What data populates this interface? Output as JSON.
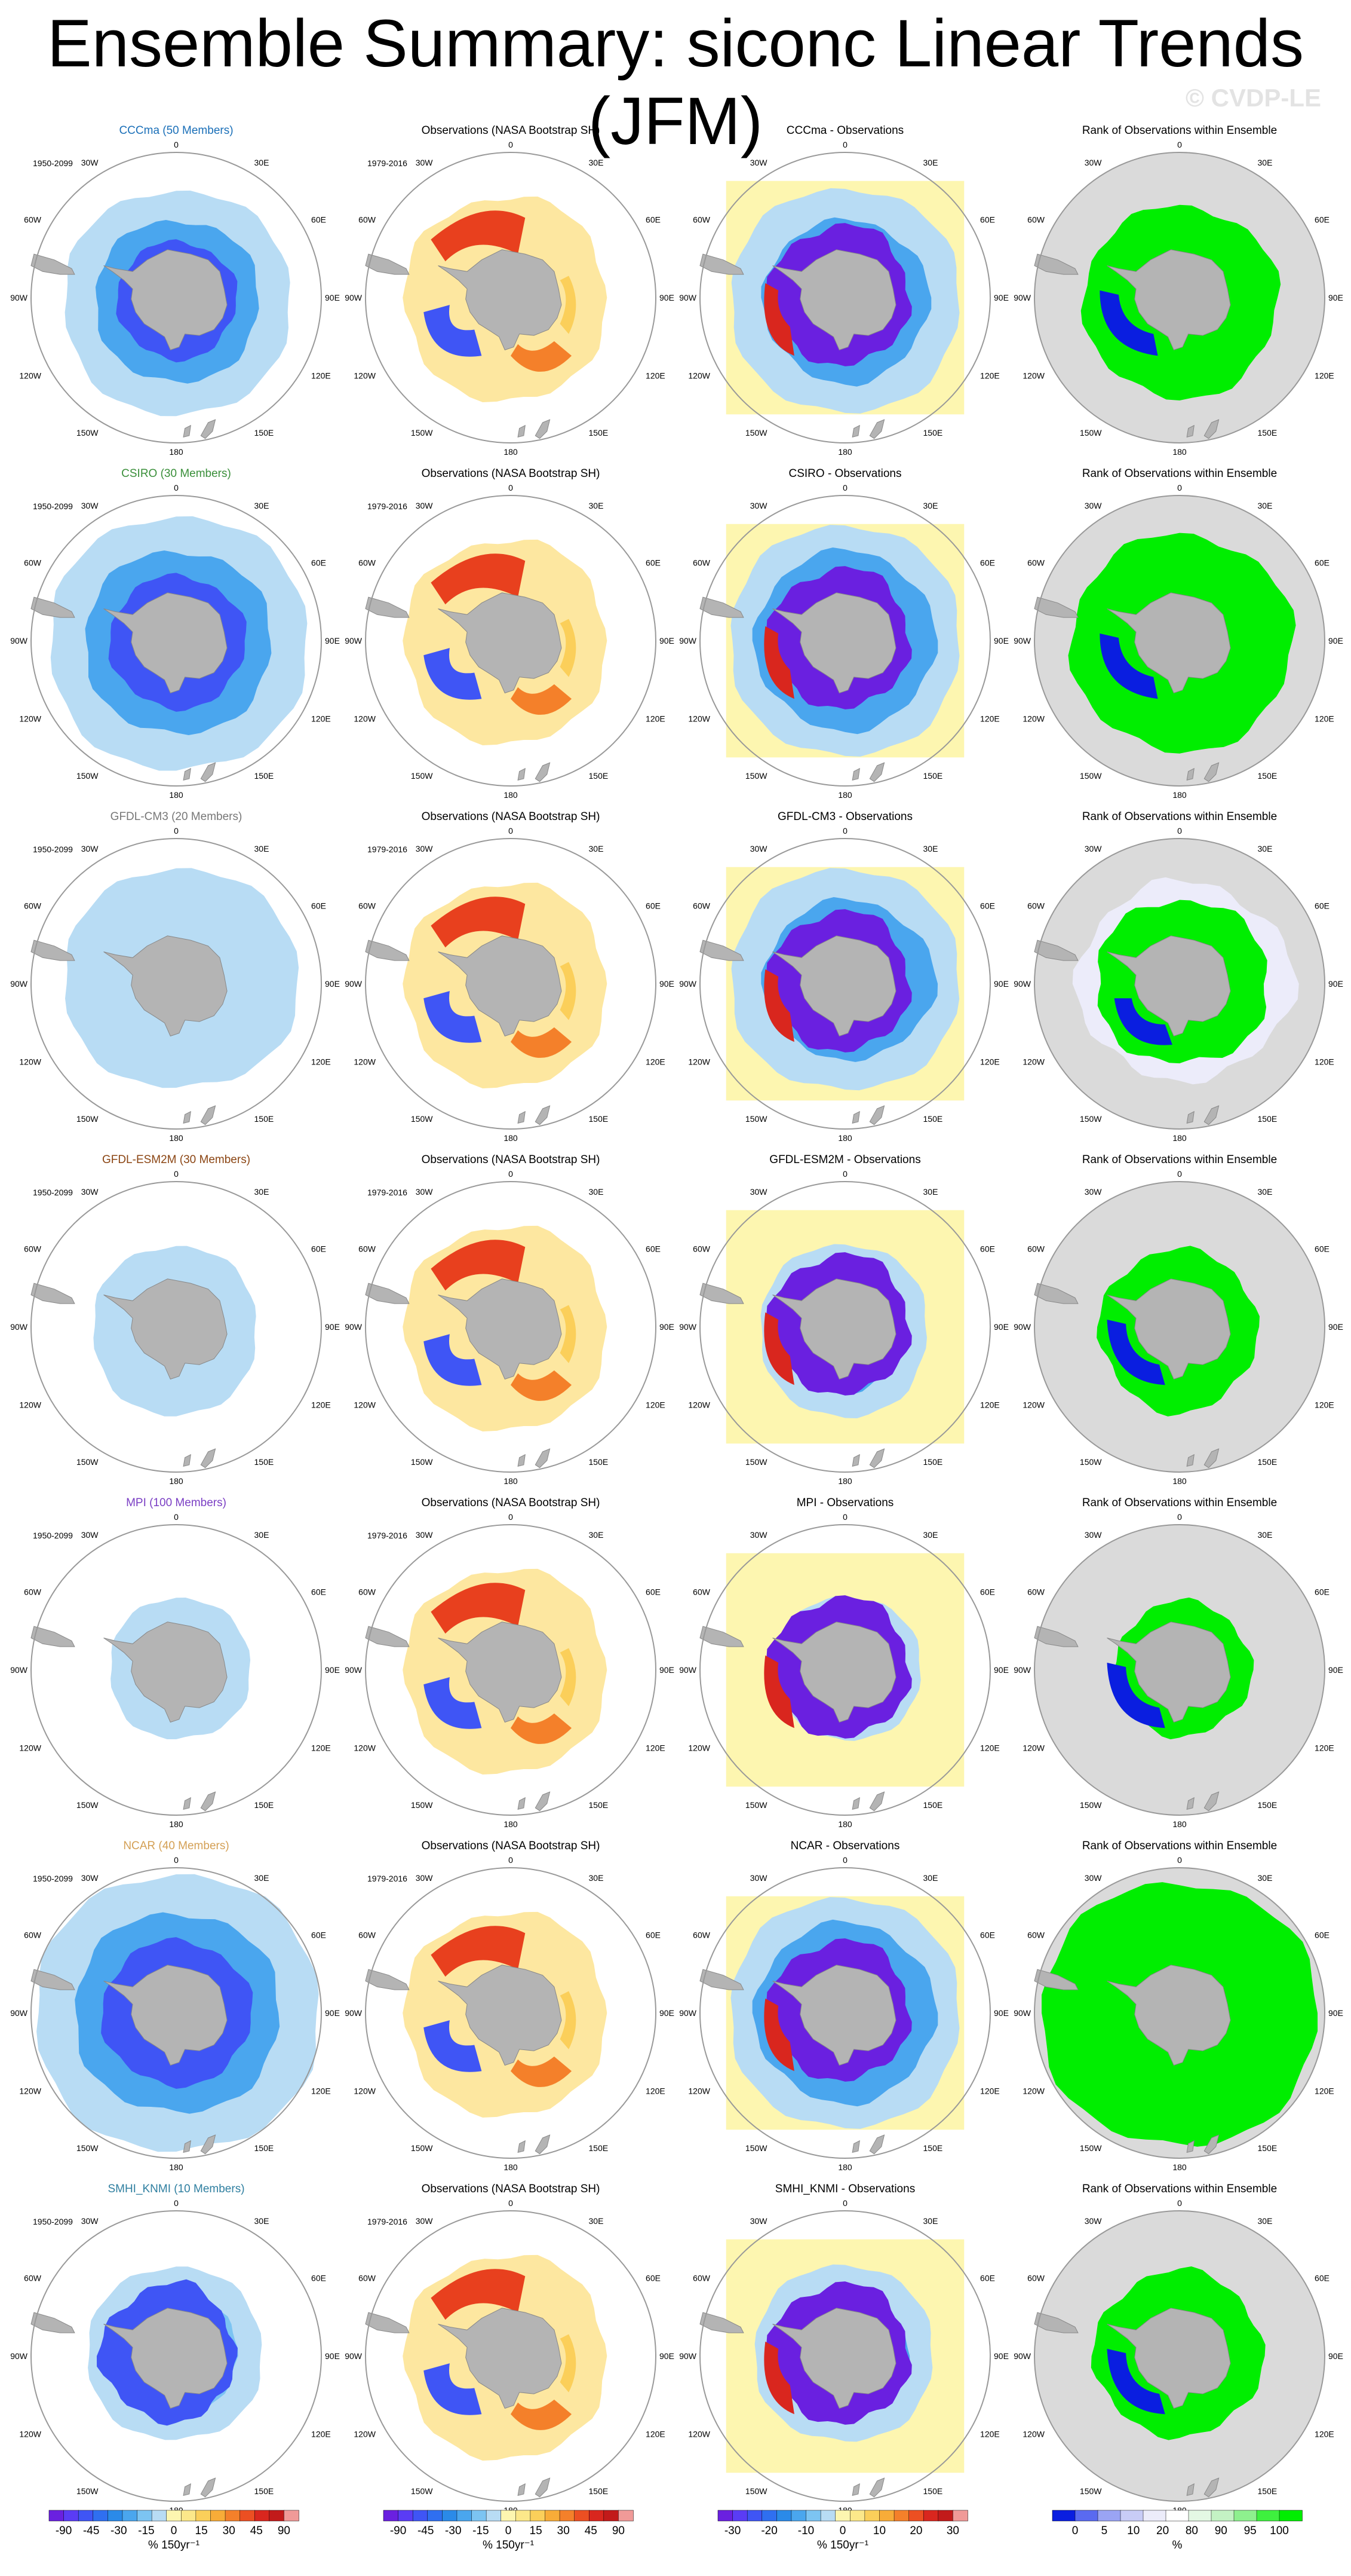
{
  "title": "Ensemble Summary: siconc Linear Trends (JFM)",
  "watermark": "© CVDP-LE",
  "period_model": "1950-2099",
  "period_obs": "1979-2016",
  "obs_title": "Observations (NASA Bootstrap SH)",
  "rank_title": "Rank of Observations within Ensemble",
  "lon_labels": {
    "n0": "0",
    "n30e": "30E",
    "n60e": "60E",
    "n90e": "90E",
    "n120e": "120E",
    "n150e": "150E",
    "n180": "180",
    "n150w": "150W",
    "n120w": "120W",
    "n90w": "90W",
    "n60w": "60W",
    "n30w": "30W"
  },
  "rows": [
    {
      "model_title": "CCCma (50 Members)",
      "model_color": "#1a6fb8",
      "diff_title": "CCCma - Observations",
      "ext": [
        0.74,
        0.8,
        0.82,
        0.78
      ],
      "model_style": "strong",
      "diff_box": 0.82,
      "rank_style": "ring"
    },
    {
      "model_title": "CSIRO (30 Members)",
      "model_color": "#3a8f3a",
      "diff_title": "CSIRO - Observations",
      "ext": [
        0.86,
        0.92,
        0.9,
        0.88
      ],
      "model_style": "strong",
      "diff_box": 0.82,
      "rank_style": "ring"
    },
    {
      "model_title": "GFDL-CM3 (20 Members)",
      "model_color": "#777777",
      "diff_title": "GFDL-CM3 - Observations",
      "ext": [
        0.8,
        0.86,
        0.72,
        0.78
      ],
      "model_style": "light",
      "diff_box": 0.82,
      "rank_style": "mixed"
    },
    {
      "model_title": "GFDL-ESM2M (30 Members)",
      "model_color": "#8b4513",
      "diff_title": "GFDL-ESM2M - Observations",
      "ext": [
        0.56,
        0.56,
        0.62,
        0.58
      ],
      "model_style": "light",
      "diff_box": 0.82,
      "rank_style": "partial"
    },
    {
      "model_title": "MPI (100 Members)",
      "model_color": "#7b3fc4",
      "diff_title": "MPI - Observations",
      "ext": [
        0.5,
        0.52,
        0.48,
        0.46
      ],
      "model_style": "light",
      "diff_box": 0.82,
      "rank_style": "partial"
    },
    {
      "model_title": "NCAR (40 Members)",
      "model_color": "#d4a055",
      "diff_title": "NCAR - Observations",
      "ext": [
        0.96,
        1.0,
        0.96,
        0.98
      ],
      "model_style": "strong",
      "diff_box": 0.82,
      "rank_style": "full"
    },
    {
      "model_title": "SMHI_KNMI (10 Members)",
      "model_color": "#2f7fa0",
      "diff_title": "SMHI_KNMI - Observations",
      "ext": [
        0.62,
        0.6,
        0.58,
        0.62
      ],
      "model_style": "medium",
      "diff_box": 0.82,
      "rank_style": "partial"
    }
  ],
  "colorbars": [
    {
      "labels": [
        "-90",
        "-45",
        "-30",
        "-15",
        "0",
        "15",
        "30",
        "45",
        "90"
      ],
      "unit": "% 150yr⁻¹",
      "colors": [
        "#6a20e0",
        "#5a3cf5",
        "#3f55f5",
        "#2f6ff0",
        "#2a8ae8",
        "#4aa6ee",
        "#7cc4f2",
        "#b8dcf4",
        "#fdf6b0",
        "#fce88a",
        "#fbcf5a",
        "#f8ac38",
        "#f4802a",
        "#ec4f22",
        "#d9261e",
        "#c21a1a",
        "#f09a98"
      ]
    },
    {
      "labels": [
        "-90",
        "-45",
        "-30",
        "-15",
        "0",
        "15",
        "30",
        "45",
        "90"
      ],
      "unit": "% 150yr⁻¹",
      "colors": [
        "#6a20e0",
        "#5a3cf5",
        "#3f55f5",
        "#2f6ff0",
        "#2a8ae8",
        "#4aa6ee",
        "#7cc4f2",
        "#b8dcf4",
        "#fdf6b0",
        "#fce88a",
        "#fbcf5a",
        "#f8ac38",
        "#f4802a",
        "#ec4f22",
        "#d9261e",
        "#c21a1a",
        "#f09a98"
      ]
    },
    {
      "labels": [
        "-30",
        "-20",
        "-10",
        "0",
        "10",
        "20",
        "30"
      ],
      "unit": "% 150yr⁻¹",
      "colors": [
        "#6a20e0",
        "#5a3cf5",
        "#3f55f5",
        "#2f6ff0",
        "#2a8ae8",
        "#4aa6ee",
        "#7cc4f2",
        "#b8dcf4",
        "#fdf6b0",
        "#fce88a",
        "#fbcf5a",
        "#f8ac38",
        "#f4802a",
        "#ec4f22",
        "#d9261e",
        "#c21a1a",
        "#f09a98"
      ]
    },
    {
      "labels": [
        "0",
        "5",
        "10",
        "20",
        "80",
        "90",
        "95",
        "100"
      ],
      "unit": "%",
      "colors": [
        "#0a1ee0",
        "#5a6af0",
        "#9aa4f4",
        "#c8ccf6",
        "#ececfa",
        "#ffffff",
        "#e4f8e4",
        "#c4f2c4",
        "#8ef08e",
        "#3ef03e",
        "#00ee00"
      ]
    }
  ]
}
